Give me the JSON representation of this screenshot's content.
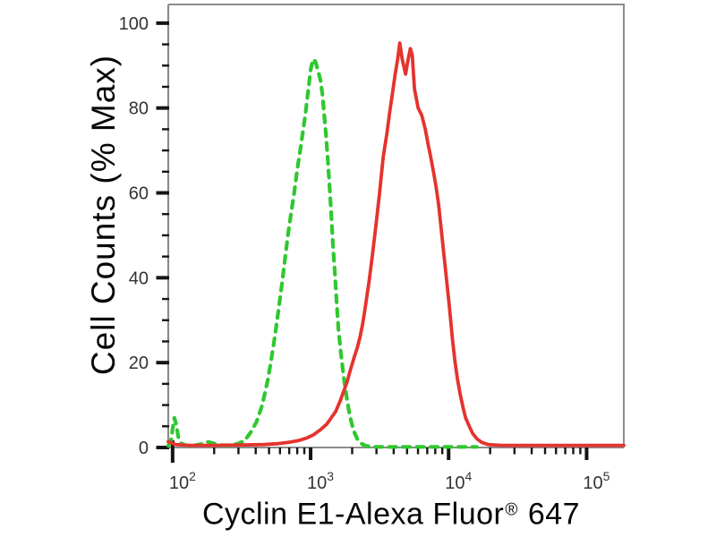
{
  "figure": {
    "ylabel": "Cell Counts (% Max)",
    "xlabel_main": "Cyclin E1-Alexa Fluor",
    "xlabel_sup": "®",
    "xlabel_suffix": " 647"
  },
  "colors": {
    "control_green": "#2fc82f",
    "sample_red": "#e5332e",
    "axis_gray": "#8c8c8c",
    "tick_black": "#151515",
    "tick_label_dark": "#333333"
  },
  "chart_data": {
    "type": "line",
    "subtype": "flow-cytometry-overlay-histogram",
    "title": "",
    "xlabel": "Cyclin E1-Alexa Fluor® 647",
    "ylabel": "Cell Counts (% Max)",
    "x_scale": "log10",
    "x_range": [
      93,
      186000
    ],
    "y_range": [
      0,
      104.4
    ],
    "x_major_ticks": [
      100,
      1000,
      10000,
      100000
    ],
    "x_minor_multipliers": [
      2,
      3,
      4,
      5,
      6,
      7,
      8,
      9
    ],
    "y_major_ticks": [
      0,
      20,
      40,
      60,
      80,
      100
    ],
    "y_minor_step": 5,
    "grid": false,
    "legend_position": "none",
    "series": [
      {
        "name": "green-dashed-control",
        "style": "dashed",
        "color": "#2fc82f",
        "points": [
          [
            93,
            0.4
          ],
          [
            98,
            2
          ],
          [
            100,
            4.5
          ],
          [
            103,
            7
          ],
          [
            106,
            5.5
          ],
          [
            110,
            2.5
          ],
          [
            115,
            1
          ],
          [
            125,
            0.5
          ],
          [
            145,
            0.5
          ],
          [
            161,
            0.8
          ],
          [
            180,
            1.3
          ],
          [
            198,
            1
          ],
          [
            215,
            0.6
          ],
          [
            248,
            0.5
          ],
          [
            290,
            0.8
          ],
          [
            330,
            1.5
          ],
          [
            367,
            3.5
          ],
          [
            405,
            6
          ],
          [
            446,
            10
          ],
          [
            490,
            16
          ],
          [
            520,
            21
          ],
          [
            550,
            26
          ],
          [
            583,
            32
          ],
          [
            617,
            38
          ],
          [
            650,
            44
          ],
          [
            685,
            50
          ],
          [
            720,
            55
          ],
          [
            760,
            60
          ],
          [
            800,
            65.5
          ],
          [
            840,
            70
          ],
          [
            880,
            74.5
          ],
          [
            920,
            79
          ],
          [
            960,
            84
          ],
          [
            1000,
            89
          ],
          [
            1040,
            91.5
          ],
          [
            1080,
            91
          ],
          [
            1130,
            89
          ],
          [
            1180,
            86.5
          ],
          [
            1215,
            83.5
          ],
          [
            1250,
            79
          ],
          [
            1290,
            74
          ],
          [
            1330,
            68
          ],
          [
            1370,
            62
          ],
          [
            1410,
            55
          ],
          [
            1450,
            48
          ],
          [
            1500,
            41
          ],
          [
            1545,
            34
          ],
          [
            1590,
            28
          ],
          [
            1660,
            22
          ],
          [
            1740,
            16.5
          ],
          [
            1820,
            12
          ],
          [
            1900,
            8.5
          ],
          [
            1990,
            5.5
          ],
          [
            2080,
            3.5
          ],
          [
            2180,
            2
          ],
          [
            2310,
            1
          ],
          [
            2500,
            0.4
          ],
          [
            2800,
            0.15
          ],
          [
            3500,
            0.15
          ],
          [
            5000,
            0.15
          ],
          [
            7000,
            0.15
          ],
          [
            9500,
            0.15
          ],
          [
            12500,
            0.15
          ],
          [
            16000,
            0.15
          ]
        ]
      },
      {
        "name": "red-solid-sample",
        "style": "solid",
        "color": "#e5332e",
        "points": [
          [
            93,
            1.4
          ],
          [
            96,
            1.2
          ],
          [
            105,
            0.7
          ],
          [
            128,
            0.5
          ],
          [
            202,
            0.5
          ],
          [
            316,
            0.6
          ],
          [
            460,
            0.7
          ],
          [
            577,
            0.9
          ],
          [
            690,
            1.2
          ],
          [
            810,
            1.6
          ],
          [
            930,
            2.2
          ],
          [
            1050,
            3
          ],
          [
            1180,
            4.2
          ],
          [
            1310,
            5.5
          ],
          [
            1410,
            7
          ],
          [
            1520,
            8.5
          ],
          [
            1640,
            11
          ],
          [
            1770,
            14
          ],
          [
            1840,
            15.5
          ],
          [
            1950,
            18.5
          ],
          [
            2080,
            21.5
          ],
          [
            2180,
            23.5
          ],
          [
            2280,
            26
          ],
          [
            2380,
            29
          ],
          [
            2490,
            33
          ],
          [
            2660,
            39.5
          ],
          [
            2820,
            46
          ],
          [
            2990,
            53
          ],
          [
            3160,
            60
          ],
          [
            3360,
            68.5
          ],
          [
            3570,
            74
          ],
          [
            3740,
            79
          ],
          [
            3900,
            83
          ],
          [
            4080,
            87.5
          ],
          [
            4270,
            91.5
          ],
          [
            4430,
            95.3
          ],
          [
            4610,
            91.5
          ],
          [
            4880,
            88
          ],
          [
            5060,
            91
          ],
          [
            5280,
            94
          ],
          [
            5450,
            92.5
          ],
          [
            5660,
            84.5
          ],
          [
            6010,
            80
          ],
          [
            6380,
            78.3
          ],
          [
            6780,
            75
          ],
          [
            7100,
            71.5
          ],
          [
            7410,
            68.5
          ],
          [
            7760,
            65
          ],
          [
            8110,
            61.5
          ],
          [
            8480,
            57
          ],
          [
            8870,
            51
          ],
          [
            9280,
            45
          ],
          [
            9700,
            39
          ],
          [
            10150,
            33
          ],
          [
            10620,
            26
          ],
          [
            11100,
            20.5
          ],
          [
            11610,
            16
          ],
          [
            12140,
            12.5
          ],
          [
            12700,
            9.5
          ],
          [
            13280,
            7
          ],
          [
            14100,
            5
          ],
          [
            14960,
            3.3
          ],
          [
            16100,
            2
          ],
          [
            17400,
            1.2
          ],
          [
            19300,
            0.7
          ],
          [
            24200,
            0.5
          ],
          [
            40000,
            0.5
          ],
          [
            80000,
            0.5
          ],
          [
            140000,
            0.5
          ],
          [
            186000,
            0.5
          ]
        ]
      }
    ]
  }
}
